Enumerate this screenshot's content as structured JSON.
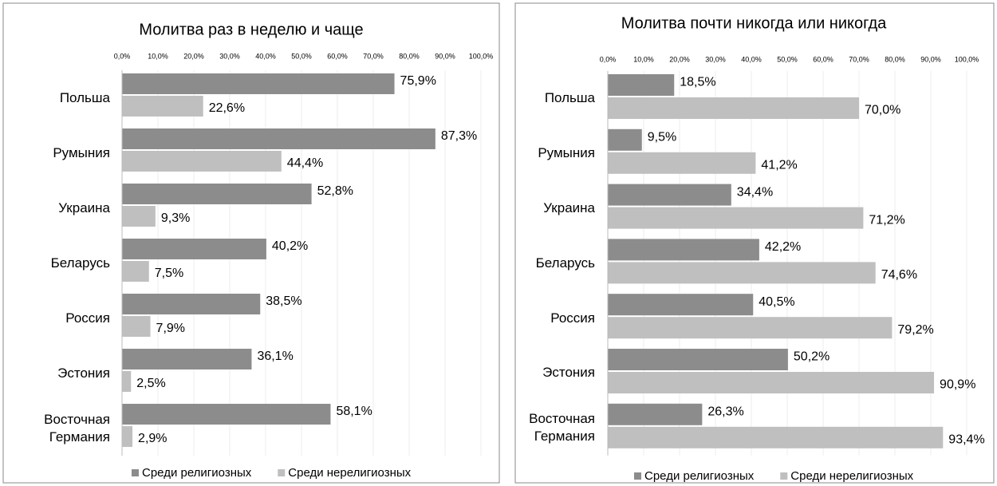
{
  "chart_data": [
    {
      "type": "bar",
      "orientation": "horizontal",
      "title": "Молитва раз в неделю и чаще",
      "categories": [
        "Польша",
        "Румыния",
        "Украина",
        "Беларусь",
        "Россия",
        "Эстония",
        "Восточная Германия"
      ],
      "series": [
        {
          "name": "Среди религиозных",
          "color": "#8c8c8c",
          "values": [
            75.9,
            87.3,
            52.8,
            40.2,
            38.5,
            36.1,
            58.1
          ],
          "value_labels": [
            "75,9%",
            "87,3%",
            "52,8%",
            "40,2%",
            "38,5%",
            "36,1%",
            "58,1%"
          ]
        },
        {
          "name": "Среди нерелигиозных",
          "color": "#bfbfbf",
          "values": [
            22.6,
            44.4,
            9.3,
            7.5,
            7.9,
            2.5,
            2.9
          ],
          "value_labels": [
            "22,6%",
            "44,4%",
            "9,3%",
            "7,5%",
            "7,9%",
            "2,5%",
            "2,9%"
          ]
        }
      ],
      "xlim": [
        0,
        100
      ],
      "xticks": [
        {
          "value": 0,
          "label": "0,0%"
        },
        {
          "value": 10,
          "label": "10,0%"
        },
        {
          "value": 20,
          "label": "20,0%"
        },
        {
          "value": 30,
          "label": "30,0%"
        },
        {
          "value": 40,
          "label": "40,0%"
        },
        {
          "value": 50,
          "label": "50,0%"
        },
        {
          "value": 60,
          "label": "60,0%"
        },
        {
          "value": 70,
          "label": "70,0%"
        },
        {
          "value": 80,
          "label": "80,0%"
        },
        {
          "value": 90,
          "label": "90,0%"
        },
        {
          "value": 100,
          "label": "100,0%"
        }
      ],
      "grid": true,
      "legend": "bottom"
    },
    {
      "type": "bar",
      "orientation": "horizontal",
      "title": "Молитва почти никогда или никогда",
      "categories": [
        "Польша",
        "Румыния",
        "Украина",
        "Беларусь",
        "Россия",
        "Эстония",
        "Восточная Германия"
      ],
      "series": [
        {
          "name": "Среди религиозных",
          "color": "#8c8c8c",
          "values": [
            18.5,
            9.5,
            34.4,
            42.2,
            40.5,
            50.2,
            26.3
          ],
          "value_labels": [
            "18,5%",
            "9,5%",
            "34,4%",
            "42,2%",
            "40,5%",
            "50,2%",
            "26,3%"
          ]
        },
        {
          "name": "Среди нерелигиозных",
          "color": "#bfbfbf",
          "values": [
            70.0,
            41.2,
            71.2,
            74.6,
            79.2,
            90.9,
            93.4
          ],
          "value_labels": [
            "70,0%",
            "41,2%",
            "71,2%",
            "74,6%",
            "79,2%",
            "90,9%",
            "93,4%"
          ]
        }
      ],
      "xlim": [
        0,
        100
      ],
      "xticks": [
        {
          "value": 0,
          "label": "0,0%"
        },
        {
          "value": 10,
          "label": "10,0%"
        },
        {
          "value": 20,
          "label": "20,0%"
        },
        {
          "value": 30,
          "label": "30,0%"
        },
        {
          "value": 40,
          "label": "40,0%"
        },
        {
          "value": 50,
          "label": "50,0%"
        },
        {
          "value": 60,
          "label": "60,0%"
        },
        {
          "value": 70,
          "label": "70,0%"
        },
        {
          "value": 80,
          "label": "80,0%"
        },
        {
          "value": 90,
          "label": "90,0%"
        },
        {
          "value": 100,
          "label": "100,0%"
        }
      ],
      "grid": true,
      "legend": "bottom"
    }
  ]
}
